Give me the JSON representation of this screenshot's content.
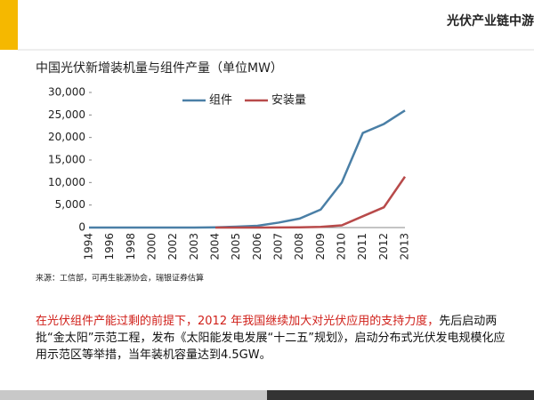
{
  "header": {
    "title": "光伏产业链中游"
  },
  "chart_data": {
    "type": "line",
    "title": "中国光伏新增装机量与组件产量（单位MW）",
    "categories": [
      "1994",
      "1996",
      "1998",
      "2000",
      "2002",
      "2003",
      "2004",
      "2005",
      "2006",
      "2007",
      "2008",
      "2009",
      "2010",
      "2011",
      "2012",
      "2013"
    ],
    "series": [
      {
        "name": "组件",
        "color": "#4a7fa6",
        "values": [
          0,
          0,
          0,
          0,
          0,
          0,
          50,
          200,
          400,
          1100,
          2000,
          4000,
          10000,
          21000,
          23000,
          26000
        ]
      },
      {
        "name": "安装量",
        "color": "#b84a4a",
        "values": [
          null,
          null,
          null,
          null,
          null,
          null,
          0,
          0,
          10,
          20,
          40,
          160,
          500,
          2500,
          4500,
          11300
        ]
      }
    ],
    "ylim": [
      0,
      30000
    ],
    "yticks": [
      0,
      {
        "value": 5000,
        "label": "5,000"
      },
      {
        "value": 10000,
        "label": "10,000"
      },
      {
        "value": 15000,
        "label": "15,000"
      },
      {
        "value": 20000,
        "label": "20,000"
      },
      {
        "value": 25000,
        "label": "25,000"
      },
      {
        "value": 30000,
        "label": "30,000"
      }
    ],
    "legend": "top"
  },
  "source": "来源：工信部，可再生能源协会，瑞银证券估算",
  "paragraph": {
    "highlight": "在光伏组件产能过剩的前提下，2012 年我国继续加大对光伏应用的支持力度，",
    "rest": "先后启动两批“金太阳”示范工程，发布《太阳能发电发展“十二五”规划》，启动分布式光伏发电规模化应用示范区等举措，当年装机容量达到4.5GW。"
  }
}
